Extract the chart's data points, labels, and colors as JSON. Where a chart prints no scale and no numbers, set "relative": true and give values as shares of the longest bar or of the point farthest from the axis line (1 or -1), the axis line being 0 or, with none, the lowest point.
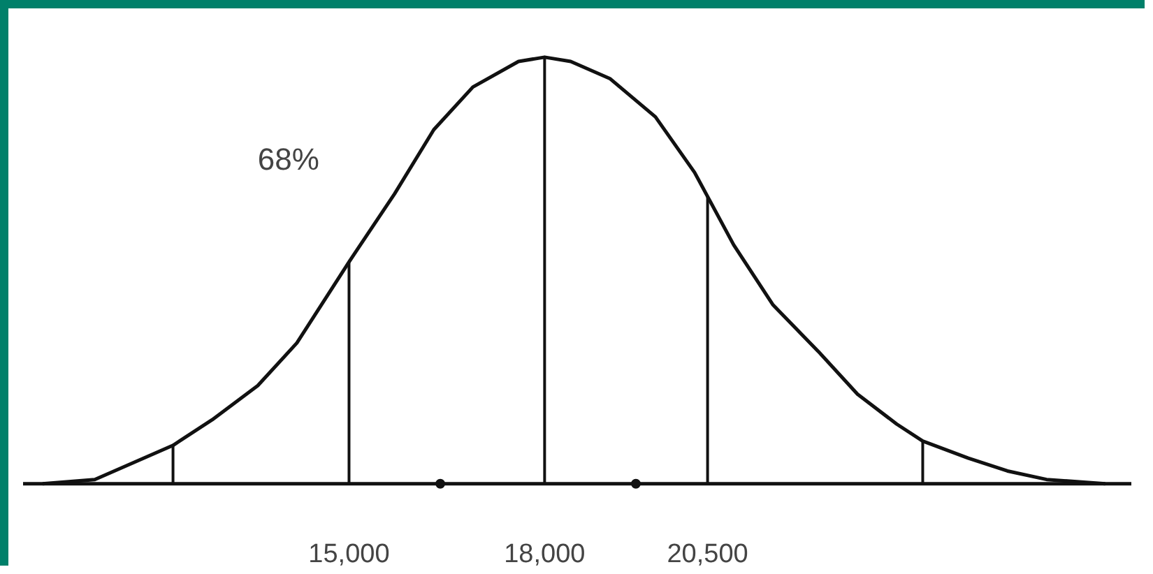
{
  "chart_data": {
    "type": "line",
    "relative": true,
    "x": [
      10300,
      11100,
      11700,
      12300,
      12900,
      13600,
      14200,
      15000,
      15700,
      16300,
      16900,
      17600,
      18000,
      18400,
      19000,
      19700,
      20300,
      20900,
      21500,
      22200,
      22800,
      23400,
      23800,
      24500,
      25100,
      25700,
      26600
    ],
    "series": [
      {
        "color": "#111111",
        "values": [
          0,
          0.01,
          0.05,
          0.09,
          0.15,
          0.23,
          0.33,
          0.52,
          0.68,
          0.83,
          0.93,
          0.99,
          1,
          0.99,
          0.95,
          0.86,
          0.73,
          0.56,
          0.42,
          0.31,
          0.21,
          0.14,
          0.1,
          0.06,
          0.03,
          0.01,
          0
        ]
      },
      {
        "type": "scatter",
        "color": "#111111",
        "x": [
          16400,
          19400
        ],
        "values": [
          0,
          0
        ],
        "marker": "circle"
      }
    ],
    "xlim": [
      10000,
      27000
    ],
    "xticks": [
      {
        "value": 15000,
        "label": "15,000"
      },
      {
        "value": 18000,
        "label": "18,000"
      },
      {
        "value": 20500,
        "label": "20,500"
      }
    ],
    "ref_lines": [
      {
        "axis": "x",
        "value": 12300
      },
      {
        "axis": "x",
        "value": 15000
      },
      {
        "axis": "x",
        "value": 18000
      },
      {
        "axis": "x",
        "value": 20500
      },
      {
        "axis": "x",
        "value": 23800
      }
    ],
    "annotations": [
      "68%"
    ],
    "grid": false
  }
}
